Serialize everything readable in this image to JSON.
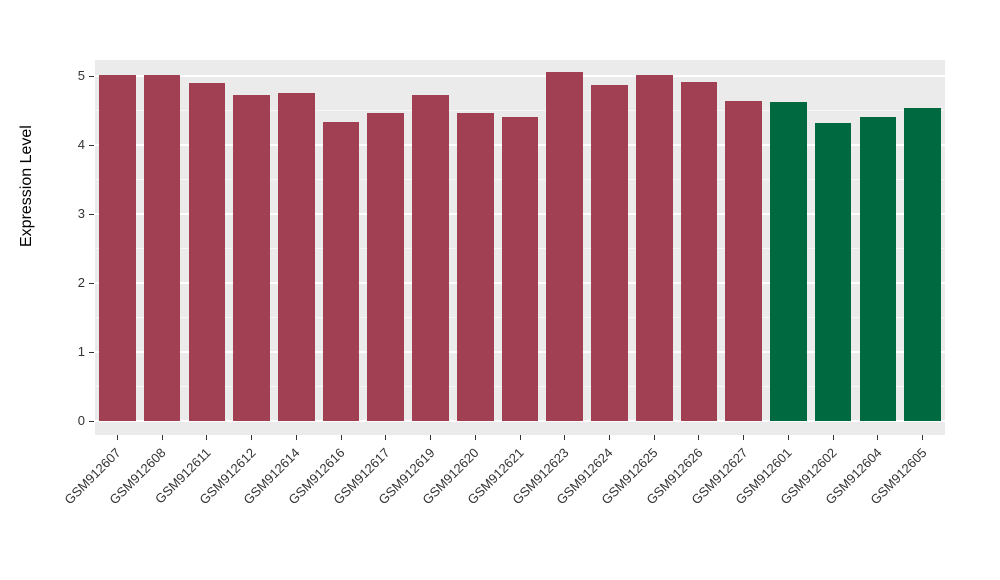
{
  "chart_data": {
    "type": "bar",
    "title": "",
    "xlabel": "",
    "ylabel": "Expression Level",
    "categories": [
      "GSM912607",
      "GSM912608",
      "GSM912611",
      "GSM912612",
      "GSM912614",
      "GSM912616",
      "GSM912617",
      "GSM912619",
      "GSM912620",
      "GSM912621",
      "GSM912623",
      "GSM912624",
      "GSM912625",
      "GSM912626",
      "GSM912627",
      "GSM912601",
      "GSM912602",
      "GSM912604",
      "GSM912605"
    ],
    "values": [
      5.02,
      5.02,
      4.9,
      4.72,
      4.75,
      4.33,
      4.46,
      4.73,
      4.46,
      4.4,
      5.06,
      4.87,
      5.01,
      4.91,
      4.64,
      4.63,
      4.32,
      4.4,
      4.54
    ],
    "groups": [
      "A",
      "A",
      "A",
      "A",
      "A",
      "A",
      "A",
      "A",
      "A",
      "A",
      "A",
      "A",
      "A",
      "A",
      "A",
      "B",
      "B",
      "B",
      "B"
    ],
    "group_colors": {
      "A": "#A04052",
      "B": "#00693F"
    },
    "yticks": [
      0,
      1,
      2,
      3,
      4,
      5
    ],
    "ylim": [
      0,
      5.2
    ],
    "grid": true,
    "legend_position": "none",
    "panel_background": "#EBEBEB",
    "gridline_color": "#FFFFFF",
    "axis_text_color": "#333333"
  }
}
